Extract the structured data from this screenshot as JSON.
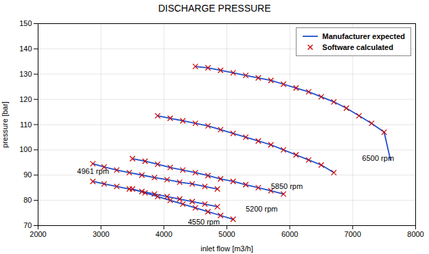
{
  "chart_data": {
    "type": "line",
    "title": "DISCHARGE PRESSURE",
    "xlabel": "inlet flow [m3/h]",
    "ylabel": "pressure [bar]",
    "xlim": [
      2000,
      8000
    ],
    "ylim": [
      70,
      150
    ],
    "xticks": [
      2000,
      3000,
      4000,
      5000,
      6000,
      7000,
      8000
    ],
    "yticks": [
      70,
      80,
      90,
      100,
      110,
      120,
      130,
      140,
      150
    ],
    "grid": true,
    "legend": "upper right",
    "series": [
      {
        "name": "Manufacturer expected",
        "type": "line",
        "color": "#1f4fcc",
        "curves": [
          {
            "x": [
              2870,
              3050,
              3250,
              3450,
              3650,
              3850,
              4050,
              4250,
              4450,
              4650,
              4850
            ],
            "values": [
              94.5,
              93.2,
              92.0,
              91.0,
              90.0,
              89.0,
              88.2,
              87.2,
              86.5,
              85.5,
              84.5
            ]
          },
          {
            "x": [
              2870,
              3050,
              3250,
              3450,
              3650,
              3850,
              4050,
              4250,
              4450,
              4650,
              4850
            ],
            "values": [
              87.5,
              86.5,
              85.5,
              84.5,
              83.5,
              82.5,
              81.5,
              80.5,
              79.5,
              78.5,
              77.5
            ]
          },
          {
            "x": [
              3500,
              3700,
              3900,
              4100,
              4300,
              4500,
              4700,
              4900,
              5100,
              5300,
              5500,
              5700,
              5900
            ],
            "values": [
              96.5,
              95.5,
              94.3,
              93.0,
              92.0,
              91.0,
              89.8,
              88.5,
              87.5,
              86.2,
              85.0,
              83.8,
              82.5
            ]
          },
          {
            "x": [
              3500,
              3700,
              3900,
              4100,
              4300,
              4500,
              4700,
              4900,
              5100
            ],
            "values": [
              84.5,
              83.0,
              81.5,
              80.0,
              78.5,
              77.0,
              75.5,
              74.0,
              72.5
            ]
          },
          {
            "x": [
              3900,
              4100,
              4300,
              4500,
              4700,
              4900,
              5100,
              5300,
              5500,
              5700,
              5900,
              6100,
              6300,
              6500,
              6700
            ],
            "values": [
              113.5,
              112.5,
              111.5,
              110.5,
              109.5,
              108.0,
              106.5,
              105.0,
              103.5,
              102.0,
              100.0,
              98.0,
              96.0,
              94.0,
              91.0
            ]
          },
          {
            "x": [
              4500,
              4700,
              4900,
              5100,
              5300,
              5500,
              5700,
              5900,
              6100,
              6300,
              6500,
              6700,
              6900,
              7100,
              7300,
              7500,
              7600
            ],
            "values": [
              133.0,
              132.5,
              131.5,
              130.5,
              129.5,
              128.5,
              127.5,
              126.0,
              124.5,
              123.0,
              121.0,
              119.0,
              116.5,
              113.5,
              110.5,
              107.0,
              96.0
            ]
          }
        ]
      },
      {
        "name": "Software calculated",
        "type": "scatter",
        "marker": "x",
        "color": "#cc0000",
        "curves": [
          {
            "x": [
              2870,
              3050,
              3250,
              3450,
              3650,
              3850,
              4050,
              4250,
              4450,
              4650,
              4850
            ],
            "values": [
              94.5,
              93.2,
              92.0,
              91.0,
              90.0,
              89.0,
              88.2,
              87.2,
              86.5,
              85.5,
              84.5
            ]
          },
          {
            "x": [
              2870,
              3050,
              3250,
              3450,
              3650,
              3850,
              4050,
              4250,
              4450,
              4650,
              4850
            ],
            "values": [
              87.5,
              86.5,
              85.5,
              84.5,
              83.5,
              82.5,
              81.5,
              80.5,
              79.5,
              78.5,
              77.5
            ]
          },
          {
            "x": [
              3500,
              3700,
              3900,
              4100,
              4300,
              4500,
              4700,
              4900,
              5100,
              5300,
              5500,
              5700,
              5900
            ],
            "values": [
              96.5,
              95.5,
              94.3,
              93.0,
              92.0,
              91.0,
              89.8,
              88.5,
              87.5,
              86.2,
              85.0,
              83.8,
              82.5
            ]
          },
          {
            "x": [
              3500,
              3700,
              3900,
              4100,
              4300,
              4500,
              4700,
              4900,
              5100
            ],
            "values": [
              84.5,
              83.0,
              81.5,
              80.0,
              78.5,
              77.0,
              75.5,
              74.0,
              72.5
            ]
          },
          {
            "x": [
              3900,
              4100,
              4300,
              4500,
              4700,
              4900,
              5100,
              5300,
              5500,
              5700,
              5900,
              6100,
              6300,
              6500,
              6700
            ],
            "values": [
              113.5,
              112.5,
              111.5,
              110.5,
              109.5,
              108.0,
              106.5,
              105.0,
              103.5,
              102.0,
              100.0,
              98.0,
              96.0,
              94.0,
              91.0
            ]
          },
          {
            "x": [
              4500,
              4700,
              4900,
              5100,
              5300,
              5500,
              5700,
              5900,
              6100,
              6300,
              6500,
              6700,
              6900,
              7100,
              7300,
              7500
            ],
            "values": [
              133.0,
              132.5,
              131.5,
              130.5,
              129.5,
              128.5,
              127.5,
              126.0,
              124.5,
              123.0,
              121.0,
              119.0,
              116.5,
              113.5,
              110.5,
              107.0
            ]
          }
        ]
      }
    ],
    "annotations": [
      {
        "text": "4961 rpm",
        "x": 2620,
        "y": 90.5
      },
      {
        "text": "4550 rpm",
        "x": 4380,
        "y": 70.5
      },
      {
        "text": "5200 rpm",
        "x": 5300,
        "y": 75.5
      },
      {
        "text": "5850 rpm",
        "x": 5700,
        "y": 84.5
      },
      {
        "text": "6500 rpm",
        "x": 7150,
        "y": 95.5
      }
    ]
  }
}
